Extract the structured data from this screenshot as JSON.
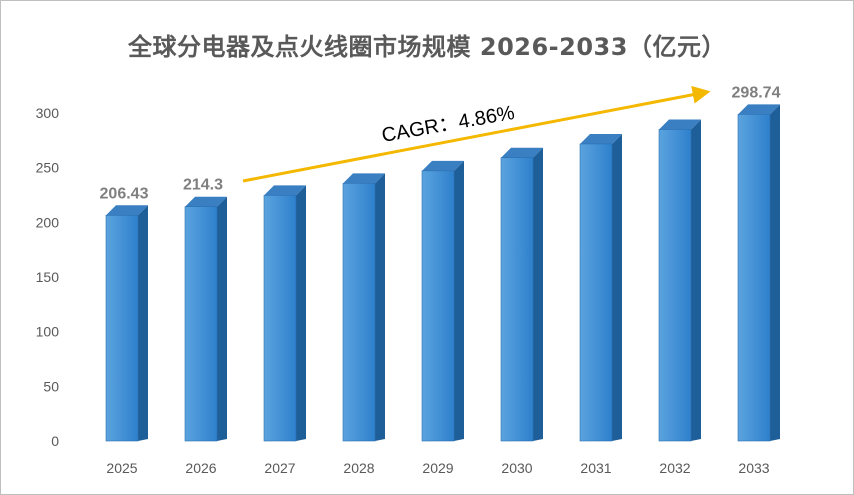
{
  "chart_data": {
    "type": "bar",
    "title": "全球分电器及点火线圈市场规模 2026-2033（亿元）",
    "categories": [
      "2025",
      "2026",
      "2027",
      "2028",
      "2029",
      "2030",
      "2031",
      "2032",
      "2033"
    ],
    "values": [
      206.43,
      214.3,
      224.7,
      235.6,
      247.1,
      259.1,
      271.7,
      284.9,
      298.74
    ],
    "data_labels": [
      {
        "index": 0,
        "text": "206.43"
      },
      {
        "index": 1,
        "text": "214.3"
      },
      {
        "index": 8,
        "text": "298.74"
      }
    ],
    "ylim": [
      0,
      300
    ],
    "yticks": [
      0,
      50,
      100,
      150,
      200,
      250,
      300
    ],
    "annotation": {
      "text": "CAGR：4.86%"
    },
    "grid": false,
    "legend": "none",
    "colors": {
      "bar_front": "#5ba3df",
      "bar_front_dark": "#2e80cc",
      "bar_side": "#1f5f99",
      "bar_top": "#3a7fc1",
      "arrow": "#f5b800",
      "title": "#595959",
      "labels": "#7f7f7f"
    }
  }
}
